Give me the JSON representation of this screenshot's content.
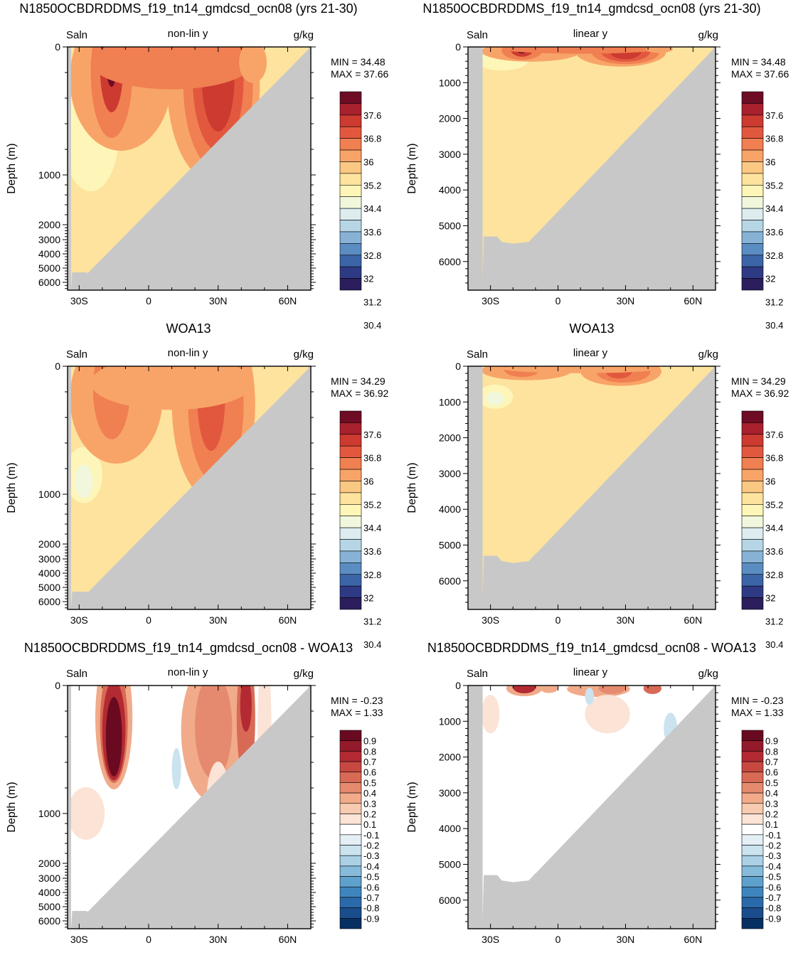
{
  "page": {
    "panel_titles": [
      "N1850OCBDRDDMS_f19_tn14_gmdcsd_ocn08 (yrs 21-30)",
      "N1850OCBDRDDMS_f19_tn14_gmdcsd_ocn08 (yrs 21-30)",
      "WOA13",
      "WOA13",
      "N1850OCBDRDDMS_f19_tn14_gmdcsd_ocn08 - WOA13",
      "N1850OCBDRDDMS_f19_tn14_gmdcsd_ocn08 - WOA13"
    ]
  },
  "colors": {
    "land": "#c8c8c8",
    "abs_palette": [
      "#2c1e5c",
      "#2f3a85",
      "#3c65a8",
      "#5b8dc2",
      "#87b2d6",
      "#b6d6e6",
      "#dcecef",
      "#f0f7dc",
      "#fdf6b8",
      "#fde39e",
      "#fbc883",
      "#f8a468",
      "#f07f51",
      "#e2583f",
      "#cc3a30",
      "#a8212d",
      "#6e0b25"
    ],
    "diff_palette": [
      "#053061",
      "#1a4d8c",
      "#2b6aaa",
      "#3f85bd",
      "#5ea1cc",
      "#86bbdb",
      "#abd0e6",
      "#cbe2ef",
      "#e3eef5",
      "#ffffff",
      "#fbe3d6",
      "#f7cbb0",
      "#f1ab8a",
      "#e58a6f",
      "#d86a55",
      "#c74840",
      "#b32a32",
      "#931a2b",
      "#6a0a20"
    ]
  },
  "chart_data": [
    {
      "id": "model-nonlin",
      "type": "heatmap",
      "title": "N1850OCBDRDDMS_f19_tn14_gmdcsd_ocn08 (yrs 21-30)",
      "variable": "Saln",
      "yscale_label": "non-lin y",
      "units": "g/kg",
      "ylabel": "Depth (m)",
      "x_ticks": [
        "30S",
        "0",
        "30N",
        "60N"
      ],
      "x_tick_values": [
        -30,
        0,
        30,
        60
      ],
      "y_ticks": [
        "0",
        "1000",
        "2000",
        "3000",
        "4000",
        "5000",
        "6000"
      ],
      "y_tick_values": [
        0,
        1000,
        2000,
        3000,
        4000,
        5000,
        6000
      ],
      "xlim": [
        -35,
        70
      ],
      "ylim": [
        0,
        6500
      ],
      "min_label": "MIN =  34.48",
      "max_label": "MAX =  37.66",
      "colorbar_labels": [
        "37.6",
        "36.8",
        "36",
        "35.2",
        "34.4",
        "33.6",
        "32.8",
        "32",
        "31.2",
        "30.4"
      ]
    },
    {
      "id": "model-lin",
      "type": "heatmap",
      "title": "N1850OCBDRDDMS_f19_tn14_gmdcsd_ocn08 (yrs 21-30)",
      "variable": "Saln",
      "yscale_label": "linear y",
      "units": "g/kg",
      "ylabel": "Depth (m)",
      "x_ticks": [
        "30S",
        "0",
        "30N",
        "60N"
      ],
      "x_tick_values": [
        -30,
        0,
        30,
        60
      ],
      "y_ticks": [
        "0",
        "1000",
        "2000",
        "3000",
        "4000",
        "5000",
        "6000"
      ],
      "y_tick_values": [
        0,
        1000,
        2000,
        3000,
        4000,
        5000,
        6000
      ],
      "xlim": [
        -40,
        70
      ],
      "ylim": [
        0,
        6800
      ],
      "min_label": "MIN =  34.48",
      "max_label": "MAX =  37.66",
      "colorbar_labels": [
        "37.6",
        "36.8",
        "36",
        "35.2",
        "34.4",
        "33.6",
        "32.8",
        "32",
        "31.2",
        "30.4"
      ]
    },
    {
      "id": "obs-nonlin",
      "type": "heatmap",
      "title": "WOA13",
      "variable": "Saln",
      "yscale_label": "non-lin y",
      "units": "g/kg",
      "ylabel": "Depth (m)",
      "x_ticks": [
        "30S",
        "0",
        "30N",
        "60N"
      ],
      "x_tick_values": [
        -30,
        0,
        30,
        60
      ],
      "y_ticks": [
        "0",
        "1000",
        "2000",
        "3000",
        "4000",
        "5000",
        "6000"
      ],
      "y_tick_values": [
        0,
        1000,
        2000,
        3000,
        4000,
        5000,
        6000
      ],
      "xlim": [
        -35,
        70
      ],
      "ylim": [
        0,
        6500
      ],
      "min_label": "MIN =  34.29",
      "max_label": "MAX =  36.92",
      "colorbar_labels": [
        "37.6",
        "36.8",
        "36",
        "35.2",
        "34.4",
        "33.6",
        "32.8",
        "32",
        "31.2",
        "30.4"
      ]
    },
    {
      "id": "obs-lin",
      "type": "heatmap",
      "title": "WOA13",
      "variable": "Saln",
      "yscale_label": "linear y",
      "units": "g/kg",
      "ylabel": "Depth (m)",
      "x_ticks": [
        "30S",
        "0",
        "30N",
        "60N"
      ],
      "x_tick_values": [
        -30,
        0,
        30,
        60
      ],
      "y_ticks": [
        "0",
        "1000",
        "2000",
        "3000",
        "4000",
        "5000",
        "6000"
      ],
      "y_tick_values": [
        0,
        1000,
        2000,
        3000,
        4000,
        5000,
        6000
      ],
      "xlim": [
        -40,
        70
      ],
      "ylim": [
        0,
        6800
      ],
      "min_label": "MIN =  34.29",
      "max_label": "MAX =  36.92",
      "colorbar_labels": [
        "37.6",
        "36.8",
        "36",
        "35.2",
        "34.4",
        "33.6",
        "32.8",
        "32",
        "31.2",
        "30.4"
      ]
    },
    {
      "id": "diff-nonlin",
      "type": "heatmap",
      "title": "N1850OCBDRDDMS_f19_tn14_gmdcsd_ocn08 - WOA13",
      "variable": "Saln",
      "yscale_label": "non-lin y",
      "units": "g/kg",
      "ylabel": "Depth (m)",
      "x_ticks": [
        "30S",
        "0",
        "30N",
        "60N"
      ],
      "x_tick_values": [
        -30,
        0,
        30,
        60
      ],
      "y_ticks": [
        "0",
        "1000",
        "2000",
        "3000",
        "4000",
        "5000",
        "6000"
      ],
      "y_tick_values": [
        0,
        1000,
        2000,
        3000,
        4000,
        5000,
        6000
      ],
      "xlim": [
        -35,
        70
      ],
      "ylim": [
        0,
        6500
      ],
      "min_label": "MIN =  -0.23",
      "max_label": "MAX =   1.33",
      "colorbar_labels": [
        "0.9",
        "0.8",
        "0.7",
        "0.6",
        "0.5",
        "0.4",
        "0.3",
        "0.2",
        "0.1",
        "-0.1",
        "-0.2",
        "-0.3",
        "-0.4",
        "-0.5",
        "-0.6",
        "-0.7",
        "-0.8",
        "-0.9"
      ]
    },
    {
      "id": "diff-lin",
      "type": "heatmap",
      "title": "N1850OCBDRDDMS_f19_tn14_gmdcsd_ocn08 - WOA13",
      "variable": "Saln",
      "yscale_label": "linear y",
      "units": "g/kg",
      "ylabel": "Depth (m)",
      "x_ticks": [
        "30S",
        "0",
        "30N",
        "60N"
      ],
      "x_tick_values": [
        -30,
        0,
        30,
        60
      ],
      "y_ticks": [
        "0",
        "1000",
        "2000",
        "3000",
        "4000",
        "5000",
        "6000"
      ],
      "y_tick_values": [
        0,
        1000,
        2000,
        3000,
        4000,
        5000,
        6000
      ],
      "xlim": [
        -40,
        70
      ],
      "ylim": [
        0,
        6800
      ],
      "min_label": "MIN =  -0.23",
      "max_label": "MAX =   1.33",
      "colorbar_labels": [
        "0.9",
        "0.8",
        "0.7",
        "0.6",
        "0.5",
        "0.4",
        "0.3",
        "0.2",
        "0.1",
        "-0.1",
        "-0.2",
        "-0.3",
        "-0.4",
        "-0.5",
        "-0.6",
        "-0.7",
        "-0.8",
        "-0.9"
      ]
    }
  ]
}
